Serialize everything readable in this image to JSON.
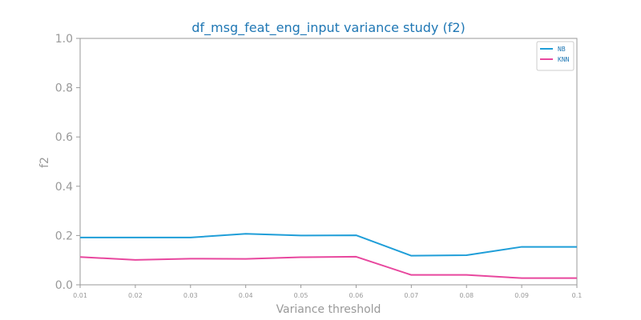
{
  "chart_data": {
    "type": "line",
    "title": "df_msg_feat_eng_input variance study (f2)",
    "xlabel": "Variance threshold",
    "ylabel": "f2",
    "x": [
      0.01,
      0.02,
      0.03,
      0.04,
      0.05,
      0.06,
      0.07,
      0.08,
      0.09,
      0.1
    ],
    "x_tick_labels": [
      "0.01",
      "0.02",
      "0.03",
      "0.04",
      "0.05",
      "0.06",
      "0.07",
      "0.08",
      "0.09",
      "0.1"
    ],
    "ylim": [
      0.0,
      1.0
    ],
    "y_ticks": [
      0.0,
      0.2,
      0.4,
      0.6,
      0.8,
      1.0
    ],
    "y_tick_labels": [
      "0.0",
      "0.2",
      "0.4",
      "0.6",
      "0.8",
      "1.0"
    ],
    "grid": false,
    "legend_position": "top-right",
    "series": [
      {
        "name": "NB",
        "color": "#1f9ed8",
        "values": [
          0.192,
          0.192,
          0.192,
          0.207,
          0.2,
          0.201,
          0.118,
          0.12,
          0.154,
          0.154
        ]
      },
      {
        "name": "KNN",
        "color": "#e8479e",
        "values": [
          0.113,
          0.101,
          0.106,
          0.105,
          0.112,
          0.114,
          0.04,
          0.04,
          0.027,
          0.027
        ]
      }
    ],
    "colors": {
      "title": "#1f77b4",
      "axis": "#999999",
      "legend_text": "#1f77b4"
    }
  }
}
